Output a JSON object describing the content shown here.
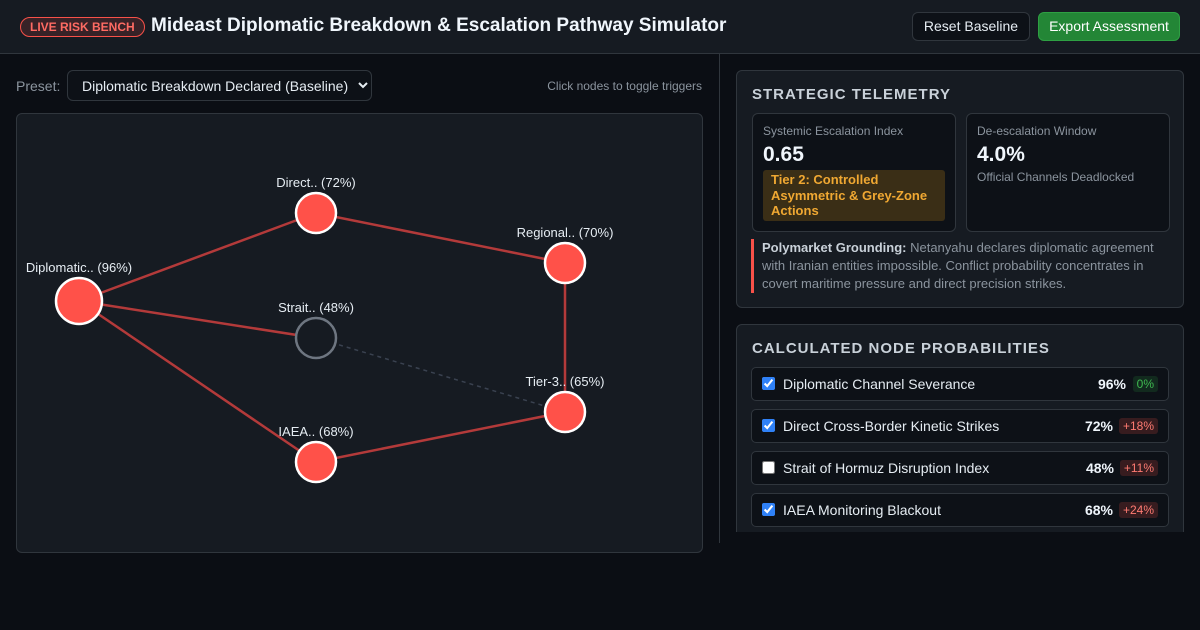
{
  "header": {
    "badge": "LIVE RISK BENCH",
    "title": "Mideast Diplomatic Breakdown & Escalation Pathway Simulator",
    "reset_label": "Reset Baseline",
    "export_label": "Export Assessment"
  },
  "controls": {
    "preset_label": "Preset:",
    "preset_value": "Diplomatic Breakdown Declared (Baseline)",
    "hint": "Click nodes to toggle triggers"
  },
  "graph": {
    "nodes": [
      {
        "id": "diplomatic",
        "label": "Diplomatic.. (96%)",
        "active": true
      },
      {
        "id": "direct",
        "label": "Direct.. (72%)",
        "active": true
      },
      {
        "id": "regional",
        "label": "Regional.. (70%)",
        "active": true
      },
      {
        "id": "strait",
        "label": "Strait.. (48%)",
        "active": false
      },
      {
        "id": "tier3",
        "label": "Tier-3.. (65%)",
        "active": true
      },
      {
        "id": "iaea",
        "label": "IAEA.. (68%)",
        "active": true
      }
    ],
    "edges": [
      {
        "from": "diplomatic",
        "to": "direct",
        "active": true
      },
      {
        "from": "direct",
        "to": "regional",
        "active": true
      },
      {
        "from": "diplomatic",
        "to": "strait",
        "active": true
      },
      {
        "from": "diplomatic",
        "to": "iaea",
        "active": true
      },
      {
        "from": "regional",
        "to": "tier3",
        "active": true
      },
      {
        "from": "iaea",
        "to": "tier3",
        "active": true
      },
      {
        "from": "strait",
        "to": "tier3",
        "active": false
      }
    ]
  },
  "telemetry": {
    "title": "STRATEGIC TELEMETRY",
    "escalation": {
      "label": "Systemic Escalation Index",
      "value": "0.65",
      "tier": "Tier 2: Controlled Asymmetric & Grey-Zone Actions"
    },
    "deescalation": {
      "label": "De-escalation Window",
      "value": "4.0%",
      "status": "Official Channels Deadlocked"
    },
    "grounding": {
      "label": "Polymarket Grounding:",
      "text": "Netanyahu declares diplomatic agreement with Iranian entities impossible. Conflict probability concentrates in covert maritime pressure and direct precision strikes."
    }
  },
  "node_probabilities": {
    "title": "CALCULATED NODE PROBABILITIES",
    "rows": [
      {
        "name": "Diplomatic Channel Severance",
        "pct": "96%",
        "delta": "0%",
        "checked": true
      },
      {
        "name": "Direct Cross-Border Kinetic Strikes",
        "pct": "72%",
        "delta": "+18%",
        "checked": true
      },
      {
        "name": "Strait of Hormuz Disruption Index",
        "pct": "48%",
        "delta": "+11%",
        "checked": false
      },
      {
        "name": "IAEA Monitoring Blackout",
        "pct": "68%",
        "delta": "+24%",
        "checked": true
      }
    ]
  },
  "colors": {
    "active_node": "#ff5149",
    "inactive_node_stroke": "#6e7681",
    "active_edge": "#b33a3a",
    "inactive_edge": "#3a4250"
  }
}
